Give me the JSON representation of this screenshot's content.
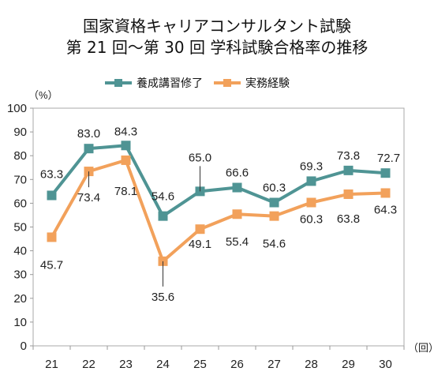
{
  "title_line1": "国家資格キャリアコンサルタント試験",
  "title_line2": "第 21 回～第 30 回 学科試験合格率の推移",
  "y_unit": "（%）",
  "x_unit": "（回）",
  "colors": {
    "series1": "#4f9494",
    "series2": "#f2a15b"
  },
  "chart_data": {
    "type": "line",
    "title": "国家資格キャリアコンサルタント試験 第 21 回～第 30 回 学科試験合格率の推移",
    "xlabel": "（回）",
    "ylabel": "（%）",
    "categories": [
      "21",
      "22",
      "23",
      "24",
      "25",
      "26",
      "27",
      "28",
      "29",
      "30"
    ],
    "ylim": [
      0,
      100
    ],
    "yticks": [
      0,
      10,
      20,
      30,
      40,
      50,
      60,
      70,
      80,
      90,
      100
    ],
    "grid": false,
    "legend_position": "top",
    "series": [
      {
        "name": "養成講習修了",
        "values": [
          63.3,
          83.0,
          84.3,
          54.6,
          65.0,
          66.6,
          60.3,
          69.3,
          73.8,
          72.7
        ]
      },
      {
        "name": "実務経験",
        "values": [
          45.7,
          73.4,
          78.1,
          35.6,
          49.1,
          55.4,
          54.6,
          60.3,
          63.8,
          64.3
        ]
      }
    ]
  }
}
